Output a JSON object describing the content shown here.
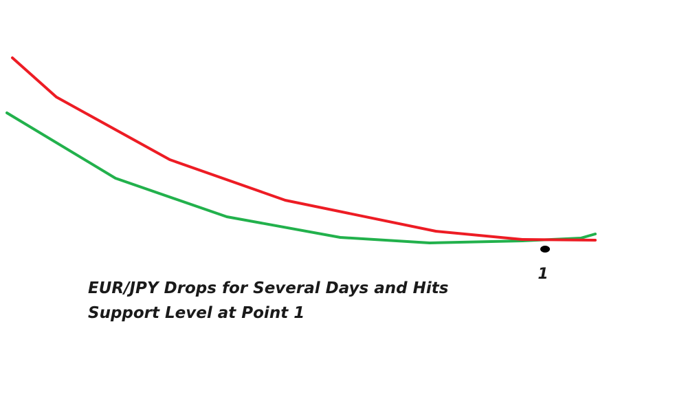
{
  "caption": {
    "lines": [
      "EUR/JPY Drops for Several Days and Hits",
      "Support Level at Point 1"
    ]
  },
  "point": {
    "label": "1"
  }
}
